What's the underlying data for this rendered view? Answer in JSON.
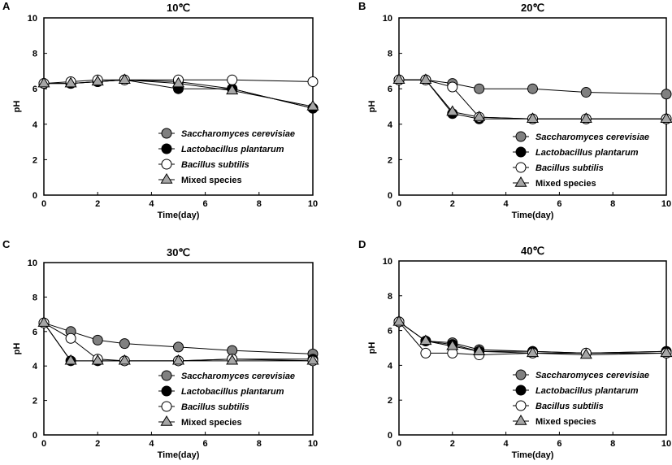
{
  "chart_data": [
    {
      "panel": "A",
      "type": "line",
      "title": "10℃",
      "xlabel": "Time(day)",
      "ylabel": "pH",
      "xlim": [
        0,
        10
      ],
      "ylim": [
        0,
        10
      ],
      "xticks": [
        0,
        2,
        4,
        6,
        8,
        10
      ],
      "yticks": [
        0,
        2,
        4,
        6,
        8,
        10
      ],
      "grid": false,
      "legend_position": "bottom-right",
      "x": [
        0,
        1,
        2,
        3,
        5,
        7,
        10
      ],
      "series": [
        {
          "name": "Saccharomyces cerevisiae",
          "marker": "circle",
          "fill": "#808080",
          "values": [
            6.3,
            6.3,
            6.4,
            6.5,
            6.4,
            6.0,
            4.9
          ]
        },
        {
          "name": "Lactobacillus plantarum",
          "marker": "circle",
          "fill": "#000000",
          "values": [
            6.3,
            6.3,
            6.4,
            6.5,
            6.0,
            6.0,
            4.9
          ]
        },
        {
          "name": "Bacillus subtilis",
          "marker": "circle",
          "fill": "#ffffff",
          "values": [
            6.3,
            6.4,
            6.5,
            6.5,
            6.5,
            6.5,
            6.4
          ]
        },
        {
          "name": "Mixed species",
          "marker": "triangle",
          "fill": "#a6a6a6",
          "values": [
            6.3,
            6.3,
            6.4,
            6.5,
            6.3,
            5.9,
            5.0
          ]
        }
      ]
    },
    {
      "panel": "B",
      "type": "line",
      "title": "20℃",
      "xlabel": "Time(day)",
      "ylabel": "pH",
      "xlim": [
        0,
        10
      ],
      "ylim": [
        0,
        10
      ],
      "xticks": [
        0,
        2,
        4,
        6,
        8,
        10
      ],
      "yticks": [
        0,
        2,
        4,
        6,
        8,
        10
      ],
      "grid": false,
      "legend_position": "bottom-right",
      "x": [
        0,
        1,
        2,
        3,
        5,
        7,
        10
      ],
      "series": [
        {
          "name": "Saccharomyces cerevisiae",
          "marker": "circle",
          "fill": "#808080",
          "values": [
            6.5,
            6.5,
            6.3,
            6.0,
            6.0,
            5.8,
            5.7
          ]
        },
        {
          "name": "Lactobacillus plantarum",
          "marker": "circle",
          "fill": "#000000",
          "values": [
            6.5,
            6.5,
            4.6,
            4.3,
            4.3,
            4.3,
            4.3
          ]
        },
        {
          "name": "Bacillus subtilis",
          "marker": "circle",
          "fill": "#ffffff",
          "values": [
            6.5,
            6.5,
            6.1,
            4.4,
            4.3,
            4.3,
            4.3
          ]
        },
        {
          "name": "Mixed species",
          "marker": "triangle",
          "fill": "#a6a6a6",
          "values": [
            6.5,
            6.5,
            4.7,
            4.4,
            4.3,
            4.3,
            4.3
          ]
        }
      ]
    },
    {
      "panel": "C",
      "type": "line",
      "title": "30℃",
      "xlabel": "Time(day)",
      "ylabel": "pH",
      "xlim": [
        0,
        10
      ],
      "ylim": [
        0,
        10
      ],
      "xticks": [
        0,
        2,
        4,
        6,
        8,
        10
      ],
      "yticks": [
        0,
        2,
        4,
        6,
        8,
        10
      ],
      "grid": false,
      "legend_position": "bottom-right",
      "x": [
        0,
        1,
        2,
        3,
        5,
        7,
        10
      ],
      "series": [
        {
          "name": "Saccharomyces cerevisiae",
          "marker": "circle",
          "fill": "#808080",
          "values": [
            6.5,
            6.0,
            5.5,
            5.3,
            5.1,
            4.9,
            4.7
          ]
        },
        {
          "name": "Lactobacillus plantarum",
          "marker": "circle",
          "fill": "#000000",
          "values": [
            6.5,
            4.3,
            4.3,
            4.3,
            4.3,
            4.4,
            4.4
          ]
        },
        {
          "name": "Bacillus subtilis",
          "marker": "circle",
          "fill": "#ffffff",
          "values": [
            6.5,
            5.6,
            4.4,
            4.3,
            4.3,
            4.4,
            4.3
          ]
        },
        {
          "name": "Mixed species",
          "marker": "triangle",
          "fill": "#a6a6a6",
          "values": [
            6.5,
            4.3,
            4.3,
            4.3,
            4.3,
            4.3,
            4.3
          ]
        }
      ]
    },
    {
      "panel": "D",
      "type": "line",
      "title": "40℃",
      "xlabel": "Time(day)",
      "ylabel": "pH",
      "xlim": [
        0,
        10
      ],
      "ylim": [
        0,
        10
      ],
      "xticks": [
        0,
        2,
        4,
        6,
        8,
        10
      ],
      "yticks": [
        0,
        2,
        4,
        6,
        8,
        10
      ],
      "grid": false,
      "legend_position": "bottom-right",
      "x": [
        0,
        1,
        2,
        3,
        5,
        7,
        10
      ],
      "series": [
        {
          "name": "Saccharomyces cerevisiae",
          "marker": "circle",
          "fill": "#808080",
          "values": [
            6.5,
            5.4,
            5.3,
            4.9,
            4.8,
            4.7,
            4.8
          ]
        },
        {
          "name": "Lactobacillus plantarum",
          "marker": "circle",
          "fill": "#000000",
          "values": [
            6.5,
            5.4,
            5.2,
            4.8,
            4.8,
            4.7,
            4.8
          ]
        },
        {
          "name": "Bacillus subtilis",
          "marker": "circle",
          "fill": "#ffffff",
          "values": [
            6.5,
            4.7,
            4.7,
            4.6,
            4.7,
            4.7,
            4.7
          ]
        },
        {
          "name": "Mixed species",
          "marker": "triangle",
          "fill": "#a6a6a6",
          "values": [
            6.5,
            5.4,
            5.1,
            4.8,
            4.7,
            4.6,
            4.7
          ]
        }
      ]
    }
  ]
}
